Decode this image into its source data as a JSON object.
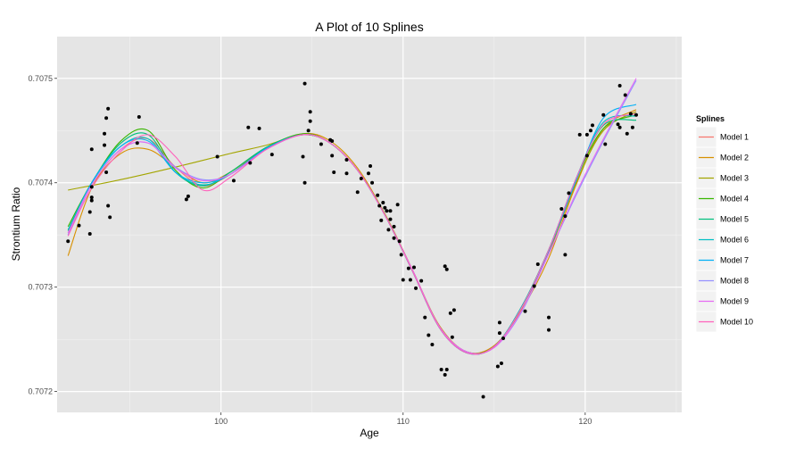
{
  "chart_data": {
    "type": "scatter",
    "title": "A Plot of 10 Splines",
    "xlabel": "Age",
    "ylabel": "Strontium Ratio",
    "xlim": [
      91.0,
      125.3
    ],
    "ylim": [
      0.70718,
      0.70754
    ],
    "x_ticks": [
      100,
      110,
      120
    ],
    "y_ticks": [
      0.7072,
      0.7073,
      0.7074,
      0.7075
    ],
    "x_tick_labels": [
      "100",
      "110",
      "120"
    ],
    "y_tick_labels": [
      "0.7072",
      "0.7073",
      "0.7074",
      "0.7075"
    ],
    "grid": true,
    "legend_position": "right",
    "legend_title": "Splines",
    "points": [
      [
        91.6,
        0.707344
      ],
      [
        92.2,
        0.707359
      ],
      [
        92.8,
        0.707351
      ],
      [
        92.8,
        0.707372
      ],
      [
        92.9,
        0.707383
      ],
      [
        92.9,
        0.707396
      ],
      [
        92.9,
        0.707432
      ],
      [
        92.9,
        0.707386
      ],
      [
        93.6,
        0.707436
      ],
      [
        93.6,
        0.707447
      ],
      [
        93.7,
        0.707462
      ],
      [
        93.7,
        0.70741
      ],
      [
        93.8,
        0.707471
      ],
      [
        93.8,
        0.707378
      ],
      [
        93.9,
        0.707367
      ],
      [
        95.5,
        0.707463
      ],
      [
        95.4,
        0.707438
      ],
      [
        98.1,
        0.707384
      ],
      [
        98.2,
        0.707387
      ],
      [
        99.8,
        0.707425
      ],
      [
        100.7,
        0.707402
      ],
      [
        101.5,
        0.707453
      ],
      [
        101.6,
        0.707419
      ],
      [
        102.1,
        0.707452
      ],
      [
        102.8,
        0.707427
      ],
      [
        104.5,
        0.707425
      ],
      [
        104.6,
        0.7074
      ],
      [
        104.6,
        0.707495
      ],
      [
        104.8,
        0.70745
      ],
      [
        104.9,
        0.707459
      ],
      [
        104.9,
        0.707468
      ],
      [
        105.5,
        0.707437
      ],
      [
        106.0,
        0.707441
      ],
      [
        106.1,
        0.70744
      ],
      [
        106.1,
        0.707426
      ],
      [
        106.2,
        0.70741
      ],
      [
        106.9,
        0.707409
      ],
      [
        106.9,
        0.707422
      ],
      [
        107.5,
        0.707391
      ],
      [
        107.7,
        0.707404
      ],
      [
        108.1,
        0.707409
      ],
      [
        108.2,
        0.707416
      ],
      [
        108.3,
        0.7074
      ],
      [
        108.6,
        0.707388
      ],
      [
        108.7,
        0.707378
      ],
      [
        108.8,
        0.707364
      ],
      [
        108.9,
        0.707381
      ],
      [
        109.0,
        0.707376
      ],
      [
        109.1,
        0.707373
      ],
      [
        109.2,
        0.707355
      ],
      [
        109.3,
        0.707373
      ],
      [
        109.3,
        0.707365
      ],
      [
        109.5,
        0.707358
      ],
      [
        109.5,
        0.707347
      ],
      [
        109.7,
        0.707379
      ],
      [
        109.8,
        0.707344
      ],
      [
        110.0,
        0.707307
      ],
      [
        109.9,
        0.707331
      ],
      [
        110.3,
        0.707318
      ],
      [
        110.4,
        0.707307
      ],
      [
        110.6,
        0.707319
      ],
      [
        110.7,
        0.707299
      ],
      [
        111.0,
        0.707306
      ],
      [
        111.2,
        0.707271
      ],
      [
        111.4,
        0.707254
      ],
      [
        111.6,
        0.707245
      ],
      [
        112.1,
        0.707221
      ],
      [
        112.3,
        0.707216
      ],
      [
        112.4,
        0.707221
      ],
      [
        112.3,
        0.70732
      ],
      [
        112.4,
        0.707317
      ],
      [
        112.6,
        0.707275
      ],
      [
        112.7,
        0.707252
      ],
      [
        112.8,
        0.707278
      ],
      [
        114.4,
        0.707195
      ],
      [
        115.2,
        0.707224
      ],
      [
        115.3,
        0.707266
      ],
      [
        115.3,
        0.707256
      ],
      [
        115.4,
        0.707227
      ],
      [
        115.5,
        0.707251
      ],
      [
        116.7,
        0.707277
      ],
      [
        117.2,
        0.707301
      ],
      [
        117.4,
        0.707322
      ],
      [
        118.0,
        0.707271
      ],
      [
        118.0,
        0.707259
      ],
      [
        118.7,
        0.707375
      ],
      [
        118.9,
        0.707368
      ],
      [
        118.9,
        0.707331
      ],
      [
        119.1,
        0.70739
      ],
      [
        119.7,
        0.707446
      ],
      [
        120.1,
        0.707446
      ],
      [
        120.1,
        0.707426
      ],
      [
        120.3,
        0.70745
      ],
      [
        120.4,
        0.707455
      ],
      [
        121.0,
        0.707465
      ],
      [
        121.1,
        0.707437
      ],
      [
        121.8,
        0.707456
      ],
      [
        121.9,
        0.707453
      ],
      [
        121.9,
        0.707493
      ],
      [
        122.2,
        0.707484
      ],
      [
        122.3,
        0.707447
      ],
      [
        122.5,
        0.707466
      ],
      [
        122.6,
        0.707453
      ],
      [
        122.8,
        0.707465
      ]
    ],
    "series": [
      {
        "name": "Model 1",
        "color": "#F8766D",
        "x": [
          91.6,
          92.9,
          94.5,
          96.0,
          97.5,
          99.0,
          100.5,
          102.5,
          104.5,
          106.0,
          107.5,
          109.0,
          110.5,
          112.0,
          113.5,
          115.0,
          116.5,
          118.0,
          119.5,
          121.0,
          122.8
        ],
        "y": [
          0.707352,
          0.707398,
          0.707432,
          0.707442,
          0.707415,
          0.707397,
          0.707408,
          0.707433,
          0.707446,
          0.707438,
          0.707412,
          0.70737,
          0.707317,
          0.707262,
          0.707238,
          0.707243,
          0.70728,
          0.707333,
          0.7074,
          0.70745,
          0.707468
        ]
      },
      {
        "name": "Model 2",
        "color": "#D89000",
        "x": [
          91.6,
          92.9,
          94.5,
          96.0,
          97.5,
          99.0,
          100.5,
          102.5,
          104.5,
          106.0,
          107.5,
          109.0,
          110.5,
          112.0,
          113.5,
          115.0,
          116.5,
          118.0,
          119.5,
          121.0,
          122.8
        ],
        "y": [
          0.70733,
          0.707395,
          0.707428,
          0.707432,
          0.707415,
          0.7074,
          0.70741,
          0.707433,
          0.707447,
          0.70744,
          0.707414,
          0.70737,
          0.707317,
          0.707263,
          0.707238,
          0.707244,
          0.707278,
          0.707328,
          0.707398,
          0.707452,
          0.70747
        ]
      },
      {
        "name": "Model 3",
        "color": "#A3A500",
        "x": [
          91.6,
          94.5,
          97.5,
          100.5,
          102.5,
          104.5,
          106.0,
          107.5,
          109.0,
          110.5,
          112.0,
          113.5,
          115.0,
          116.5,
          118.0,
          119.5,
          121.0,
          122.8
        ],
        "y": [
          0.707393,
          0.707403,
          0.707415,
          0.707428,
          0.707436,
          0.707446,
          0.707438,
          0.707412,
          0.70737,
          0.707317,
          0.707262,
          0.707238,
          0.707243,
          0.70728,
          0.707333,
          0.7074,
          0.70745,
          0.707468
        ]
      },
      {
        "name": "Model 4",
        "color": "#39B600",
        "x": [
          91.6,
          92.9,
          94.5,
          96.0,
          97.5,
          99.0,
          100.5,
          102.5,
          104.5,
          106.0,
          107.5,
          109.0,
          110.5,
          112.0,
          113.5,
          115.0,
          116.5,
          118.0,
          119.5,
          121.0,
          122.8
        ],
        "y": [
          0.707358,
          0.7074,
          0.70744,
          0.70745,
          0.707412,
          0.707395,
          0.70741,
          0.707434,
          0.707447,
          0.707438,
          0.707412,
          0.707369,
          0.707316,
          0.707262,
          0.707238,
          0.707243,
          0.707281,
          0.707336,
          0.707403,
          0.707452,
          0.707465
        ]
      },
      {
        "name": "Model 5",
        "color": "#00BF7D",
        "x": [
          91.6,
          92.9,
          94.5,
          96.0,
          97.5,
          99.0,
          100.5,
          102.5,
          104.5,
          106.0,
          107.5,
          109.0,
          110.5,
          112.0,
          113.5,
          115.0,
          116.5,
          118.0,
          119.5,
          121.0,
          122.8
        ],
        "y": [
          0.707354,
          0.7074,
          0.707438,
          0.707446,
          0.70741,
          0.707397,
          0.70741,
          0.707434,
          0.707446,
          0.707438,
          0.707412,
          0.707369,
          0.707316,
          0.707261,
          0.707237,
          0.707243,
          0.707281,
          0.707336,
          0.707404,
          0.707455,
          0.70746
        ]
      },
      {
        "name": "Model 6",
        "color": "#00BFC4",
        "x": [
          91.6,
          92.9,
          94.5,
          96.0,
          97.5,
          99.0,
          100.5,
          102.5,
          104.5,
          106.0,
          107.5,
          109.0,
          110.5,
          112.0,
          113.5,
          115.0,
          116.5,
          118.0,
          119.5,
          121.0,
          122.8
        ],
        "y": [
          0.707355,
          0.7074,
          0.707435,
          0.707442,
          0.70741,
          0.707398,
          0.707408,
          0.707433,
          0.707446,
          0.707438,
          0.707412,
          0.707369,
          0.707316,
          0.707261,
          0.707237,
          0.707243,
          0.707281,
          0.707336,
          0.707404,
          0.707458,
          0.707464
        ]
      },
      {
        "name": "Model 7",
        "color": "#00B0F6",
        "x": [
          91.6,
          92.9,
          94.5,
          96.0,
          97.5,
          99.0,
          100.5,
          102.5,
          104.5,
          106.0,
          107.5,
          109.0,
          110.5,
          112.0,
          113.5,
          115.0,
          116.5,
          118.0,
          119.5,
          121.0,
          122.8
        ],
        "y": [
          0.70735,
          0.7074,
          0.707435,
          0.70744,
          0.70741,
          0.7074,
          0.707408,
          0.707433,
          0.707446,
          0.707438,
          0.707412,
          0.707369,
          0.707316,
          0.707261,
          0.707237,
          0.707243,
          0.70728,
          0.707335,
          0.707402,
          0.707462,
          0.707475
        ]
      },
      {
        "name": "Model 8",
        "color": "#9590FF",
        "x": [
          91.6,
          92.9,
          94.5,
          96.0,
          97.5,
          99.0,
          100.5,
          102.5,
          104.5,
          106.0,
          107.5,
          109.0,
          110.5,
          112.0,
          113.5,
          115.0,
          116.5,
          118.0,
          119.5,
          121.0,
          122.8
        ],
        "y": [
          0.70735,
          0.707398,
          0.707432,
          0.707438,
          0.707415,
          0.707403,
          0.707408,
          0.707432,
          0.707446,
          0.707438,
          0.707412,
          0.707369,
          0.707317,
          0.707262,
          0.707238,
          0.707242,
          0.707276,
          0.707332,
          0.707388,
          0.70744,
          0.707498
        ]
      },
      {
        "name": "Model 9",
        "color": "#E76BF3",
        "x": [
          91.6,
          92.9,
          94.5,
          96.0,
          97.5,
          99.0,
          100.5,
          102.5,
          104.5,
          106.0,
          107.5,
          109.0,
          110.5,
          112.0,
          113.5,
          115.0,
          116.5,
          118.0,
          119.5,
          121.0,
          122.8
        ],
        "y": [
          0.707352,
          0.707398,
          0.707432,
          0.707438,
          0.707414,
          0.707402,
          0.707408,
          0.707432,
          0.707446,
          0.707438,
          0.707412,
          0.707369,
          0.707317,
          0.707262,
          0.707238,
          0.707242,
          0.707277,
          0.707332,
          0.70739,
          0.707442,
          0.7075
        ]
      },
      {
        "name": "Model 10",
        "color": "#FF62BC",
        "x": [
          91.6,
          92.9,
          94.5,
          96.0,
          97.5,
          99.0,
          100.5,
          102.5,
          104.5,
          106.0,
          107.5,
          109.0,
          110.5,
          112.0,
          113.5,
          115.0,
          116.5,
          118.0,
          119.5,
          121.0,
          122.8
        ],
        "y": [
          0.707349,
          0.707395,
          0.70743,
          0.707446,
          0.707425,
          0.707393,
          0.707405,
          0.707432,
          0.707446,
          0.707438,
          0.707412,
          0.707369,
          0.707316,
          0.707261,
          0.707237,
          0.707243,
          0.70728,
          0.707336,
          0.707404,
          0.707456,
          0.707466
        ]
      }
    ]
  }
}
